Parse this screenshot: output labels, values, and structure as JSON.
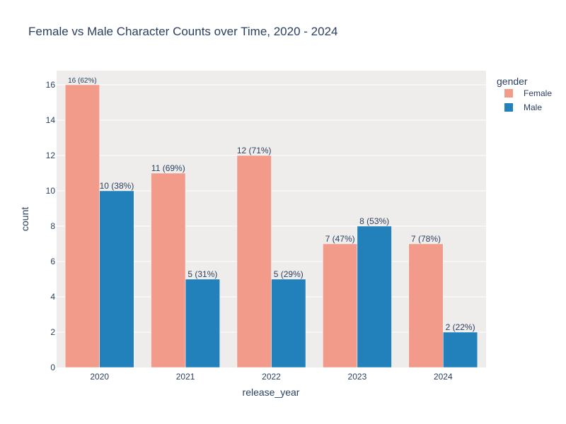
{
  "chart_data": {
    "type": "bar",
    "title": "Female vs Male Character Counts over Time, 2020 - 2024",
    "xlabel": "release_year",
    "ylabel": "count",
    "categories": [
      "2020",
      "2021",
      "2022",
      "2023",
      "2024"
    ],
    "ylim": [
      0,
      16.8
    ],
    "yticks": [
      0,
      2,
      4,
      6,
      8,
      10,
      12,
      14,
      16
    ],
    "grid": true,
    "legend": {
      "title": "gender",
      "position": "top-right"
    },
    "series": [
      {
        "name": "Female",
        "color": "#f39b8b",
        "values": [
          16,
          11,
          12,
          7,
          7
        ],
        "labels": [
          "16 (62%)",
          "11 (69%)",
          "12 (71%)",
          "7 (47%)",
          "7 (78%)"
        ]
      },
      {
        "name": "Male",
        "color": "#2280ba",
        "values": [
          10,
          5,
          5,
          8,
          2
        ],
        "labels": [
          "10 (38%)",
          "5 (31%)",
          "5 (29%)",
          "8 (53%)",
          "2 (22%)"
        ]
      }
    ],
    "colors": {
      "plot_bg": "#efedec",
      "grid": "#ffffff",
      "text": "#2a3f5f"
    }
  }
}
